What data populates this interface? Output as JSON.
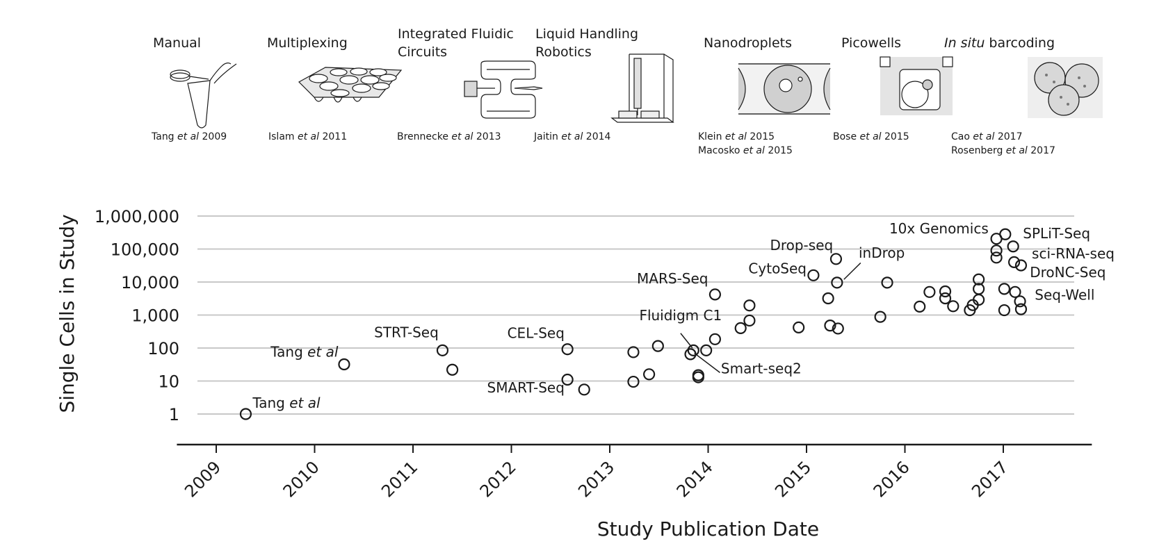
{
  "panels": [
    {
      "id": "manual",
      "title_lines": [
        "Manual"
      ],
      "citations": [
        [
          {
            "t": "Tang "
          },
          {
            "t": "et al",
            "i": true
          },
          {
            "t": " 2009"
          }
        ]
      ]
    },
    {
      "id": "multiplexing",
      "title_lines": [
        "Multiplexing"
      ],
      "citations": [
        [
          {
            "t": "Islam "
          },
          {
            "t": "et al",
            "i": true
          },
          {
            "t": " 2011"
          }
        ]
      ]
    },
    {
      "id": "ifc",
      "title_lines": [
        "Integrated Fluidic",
        "Circuits"
      ],
      "citations": [
        [
          {
            "t": "Brennecke "
          },
          {
            "t": "et al",
            "i": true
          },
          {
            "t": " 2013"
          }
        ]
      ]
    },
    {
      "id": "robotics",
      "title_lines": [
        "Liquid Handling",
        "Robotics"
      ],
      "citations": [
        [
          {
            "t": "Jaitin "
          },
          {
            "t": "et al",
            "i": true
          },
          {
            "t": " 2014"
          }
        ]
      ]
    },
    {
      "id": "nanodroplets",
      "title_lines": [
        "Nanodroplets"
      ],
      "citations": [
        [
          {
            "t": "Klein "
          },
          {
            "t": "et al",
            "i": true
          },
          {
            "t": " 2015"
          }
        ],
        [
          {
            "t": "Macosko "
          },
          {
            "t": "et al",
            "i": true
          },
          {
            "t": " 2015"
          }
        ]
      ]
    },
    {
      "id": "picowells",
      "title_lines": [
        "Picowells"
      ],
      "citations": [
        [
          {
            "t": "Bose "
          },
          {
            "t": "et al",
            "i": true
          },
          {
            "t": " 2015"
          }
        ]
      ]
    },
    {
      "id": "insitu",
      "title_rich": [
        {
          "t": "In situ",
          "i": true
        },
        {
          "t": " barcoding"
        }
      ],
      "citations": [
        [
          {
            "t": "Cao "
          },
          {
            "t": "et al",
            "i": true
          },
          {
            "t": " 2017"
          }
        ],
        [
          {
            "t": "Rosenberg "
          },
          {
            "t": "et al",
            "i": true
          },
          {
            "t": " 2017"
          }
        ]
      ]
    }
  ],
  "chart_data": {
    "type": "scatter",
    "scale": "log",
    "xlabel": "Study Publication Date",
    "ylabel": "Single Cells in Study",
    "xlim": [
      2008.6,
      2017.9
    ],
    "ylim": [
      0.25,
      1000000
    ],
    "x_ticks": [
      2009,
      2010,
      2011,
      2012,
      2013,
      2014,
      2015,
      2016,
      2017
    ],
    "x_tick_labels": [
      "2009",
      "2010",
      "2011",
      "2012",
      "2013",
      "2014",
      "2015",
      "2016",
      "2017"
    ],
    "y_ticks": [
      1,
      10,
      100,
      1000,
      10000,
      100000,
      1000000
    ],
    "y_tick_labels": [
      "1",
      "10",
      "100",
      "1,000",
      "10,000",
      "100,000",
      "1,000,000"
    ],
    "points": [
      {
        "x": 2009.3,
        "y": 1
      },
      {
        "x": 2010.3,
        "y": 32
      },
      {
        "x": 2011.3,
        "y": 85
      },
      {
        "x": 2011.4,
        "y": 22
      },
      {
        "x": 2012.57,
        "y": 92
      },
      {
        "x": 2012.57,
        "y": 11
      },
      {
        "x": 2012.74,
        "y": 5.5
      },
      {
        "x": 2013.24,
        "y": 75
      },
      {
        "x": 2013.24,
        "y": 9.5
      },
      {
        "x": 2013.4,
        "y": 16
      },
      {
        "x": 2013.49,
        "y": 115
      },
      {
        "x": 2013.82,
        "y": 65
      },
      {
        "x": 2013.85,
        "y": 85
      },
      {
        "x": 2013.9,
        "y": 13
      },
      {
        "x": 2013.9,
        "y": 15
      },
      {
        "x": 2013.98,
        "y": 85
      },
      {
        "x": 2014.07,
        "y": 185
      },
      {
        "x": 2014.07,
        "y": 4200
      },
      {
        "x": 2014.33,
        "y": 400
      },
      {
        "x": 2014.42,
        "y": 680
      },
      {
        "x": 2014.42,
        "y": 1950
      },
      {
        "x": 2014.92,
        "y": 420
      },
      {
        "x": 2015.07,
        "y": 16000
      },
      {
        "x": 2015.22,
        "y": 3200
      },
      {
        "x": 2015.24,
        "y": 480
      },
      {
        "x": 2015.3,
        "y": 50000
      },
      {
        "x": 2015.31,
        "y": 9600
      },
      {
        "x": 2015.32,
        "y": 390
      },
      {
        "x": 2015.75,
        "y": 880
      },
      {
        "x": 2015.82,
        "y": 9600
      },
      {
        "x": 2016.15,
        "y": 1800
      },
      {
        "x": 2016.25,
        "y": 5000
      },
      {
        "x": 2016.41,
        "y": 5200
      },
      {
        "x": 2016.41,
        "y": 3200
      },
      {
        "x": 2016.49,
        "y": 1850
      },
      {
        "x": 2016.66,
        "y": 1400
      },
      {
        "x": 2016.69,
        "y": 2000
      },
      {
        "x": 2016.75,
        "y": 2900
      },
      {
        "x": 2016.75,
        "y": 6200
      },
      {
        "x": 2016.75,
        "y": 12000
      },
      {
        "x": 2016.93,
        "y": 55000
      },
      {
        "x": 2016.93,
        "y": 90000
      },
      {
        "x": 2016.93,
        "y": 205000
      },
      {
        "x": 2017.01,
        "y": 1400
      },
      {
        "x": 2017.01,
        "y": 6200
      },
      {
        "x": 2017.02,
        "y": 280000
      },
      {
        "x": 2017.1,
        "y": 120000
      },
      {
        "x": 2017.11,
        "y": 40000
      },
      {
        "x": 2017.12,
        "y": 5000
      },
      {
        "x": 2017.17,
        "y": 2600
      },
      {
        "x": 2017.18,
        "y": 1500
      },
      {
        "x": 2017.18,
        "y": 32000
      }
    ],
    "annotations": [
      {
        "parts": [
          {
            "t": "Tang "
          },
          {
            "t": "et al",
            "i": true
          }
        ],
        "x": 2009.37,
        "y": 1.55,
        "anchor": "start"
      },
      {
        "parts": [
          {
            "t": "Tang "
          },
          {
            "t": "et al",
            "i": true
          }
        ],
        "x": 2010.24,
        "y": 55,
        "anchor": "end"
      },
      {
        "parts": [
          {
            "t": "STRT-Seq"
          }
        ],
        "x": 2011.26,
        "y": 210,
        "anchor": "end"
      },
      {
        "parts": [
          {
            "t": "CEL-Seq"
          }
        ],
        "x": 2012.54,
        "y": 200,
        "anchor": "end"
      },
      {
        "parts": [
          {
            "t": "SMART-Seq"
          }
        ],
        "x": 2012.54,
        "y": 4.5,
        "anchor": "end"
      },
      {
        "parts": [
          {
            "t": "MARS-Seq"
          }
        ],
        "x": 2014.0,
        "y": 9000,
        "anchor": "end"
      },
      {
        "parts": [
          {
            "t": "Fluidigm C1"
          }
        ],
        "x": 2013.3,
        "y": 700,
        "anchor": "start"
      },
      {
        "parts": [
          {
            "t": "Smart-seq2"
          }
        ],
        "x": 2014.13,
        "y": 17,
        "anchor": "start"
      },
      {
        "parts": [
          {
            "t": "CytoSeq"
          }
        ],
        "x": 2015.0,
        "y": 18500,
        "anchor": "end"
      },
      {
        "parts": [
          {
            "t": "Drop-seq"
          }
        ],
        "x": 2015.27,
        "y": 93000,
        "anchor": "end"
      },
      {
        "parts": [
          {
            "t": "inDrop"
          }
        ],
        "x": 2015.53,
        "y": 55000,
        "anchor": "start"
      },
      {
        "parts": [
          {
            "t": "10x Genomics"
          }
        ],
        "x": 2016.85,
        "y": 300000,
        "anchor": "end"
      },
      {
        "parts": [
          {
            "t": "SPLiT-Seq"
          }
        ],
        "x": 2017.2,
        "y": 210000,
        "anchor": "start"
      },
      {
        "parts": [
          {
            "t": "sci-RNA-seq"
          }
        ],
        "x": 2017.29,
        "y": 52000,
        "anchor": "start"
      },
      {
        "parts": [
          {
            "t": "DroNC-Seq"
          }
        ],
        "x": 2017.27,
        "y": 14000,
        "anchor": "start"
      },
      {
        "parts": [
          {
            "t": "Seq-Well"
          }
        ],
        "x": 2017.32,
        "y": 2900,
        "anchor": "start"
      }
    ],
    "leader_lines": [
      {
        "x1": 2013.72,
        "y1": 280,
        "x2": 2013.84,
        "y2": 100
      },
      {
        "x1": 2014.12,
        "y1": 18,
        "x2": 2013.86,
        "y2": 70
      },
      {
        "x1": 2015.38,
        "y1": 12000,
        "x2": 2015.55,
        "y2": 38000
      }
    ]
  }
}
